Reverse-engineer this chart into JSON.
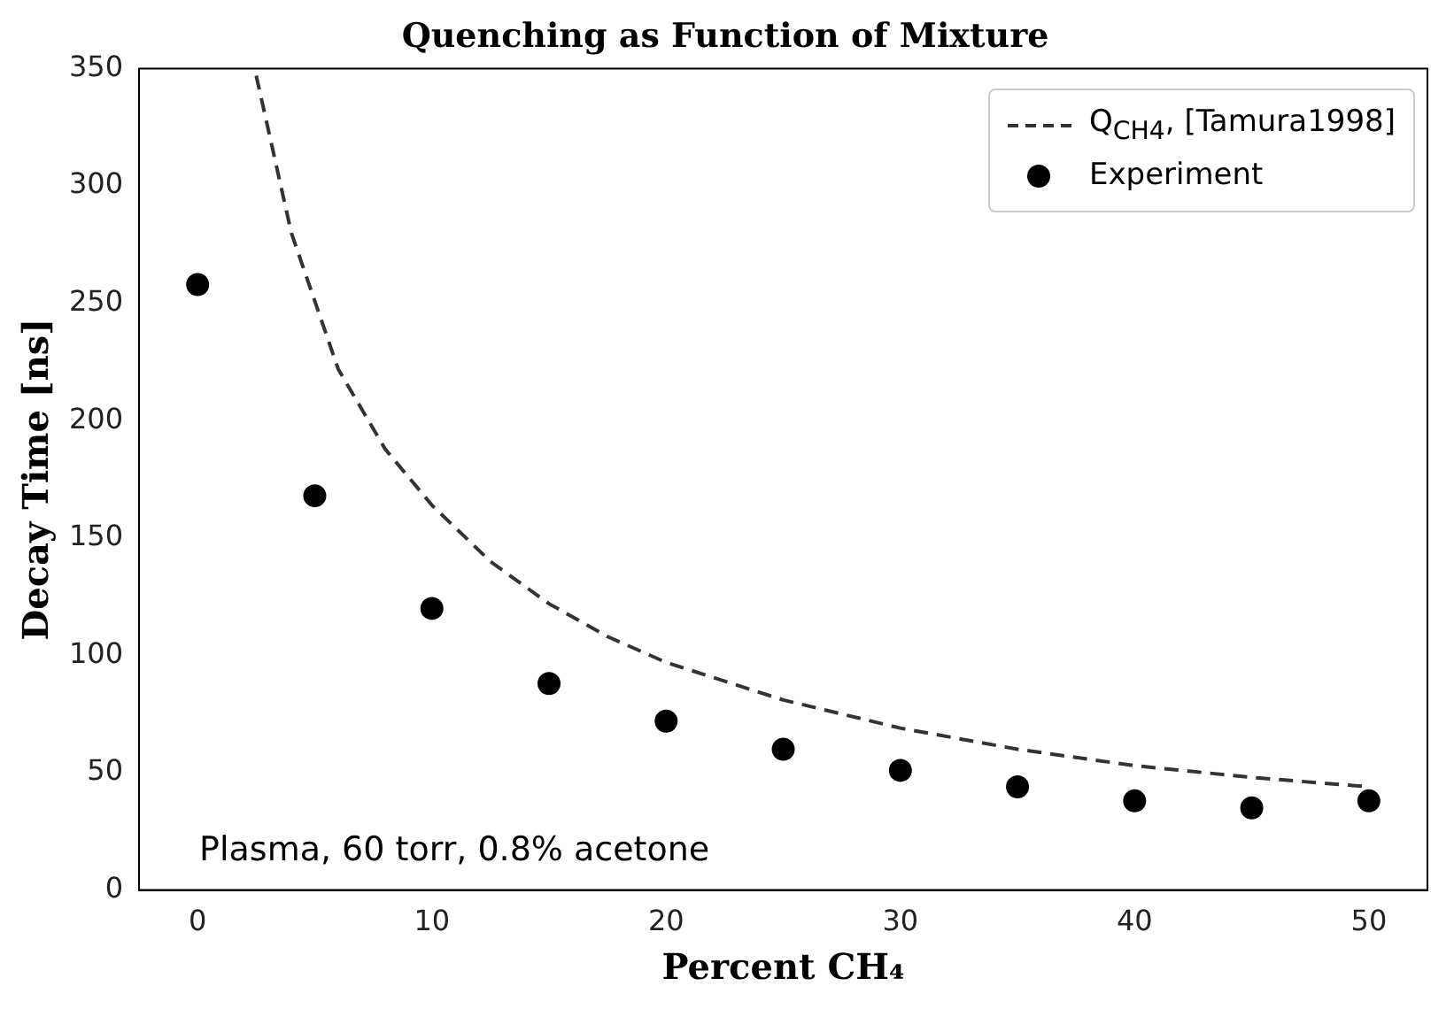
{
  "chart_data": {
    "type": "scatter",
    "title": "Quenching as Function of Mixture",
    "xlabel": "Percent CH₄",
    "ylabel": "Decay Time [ns]",
    "xlim": [
      -2.5,
      52.5
    ],
    "xticks": [
      0,
      10,
      20,
      30,
      40,
      50
    ],
    "ylim": [
      0,
      350
    ],
    "yticks": [
      0,
      50,
      100,
      150,
      200,
      250,
      300,
      350
    ],
    "grid": false,
    "legend": "top right",
    "annotations": [
      "Plasma, 60 torr, 0.8% acetone"
    ],
    "series": [
      {
        "name": "Q$_{CH4}$,  [Tamura1998]",
        "type": "line",
        "line_style": "dashed",
        "marker": "none",
        "color": "#333333",
        "x": [
          2.5,
          4,
          6,
          8,
          10,
          12.5,
          15,
          17.5,
          20,
          25,
          30,
          35,
          40,
          45,
          50
        ],
        "values": [
          347,
          280,
          222,
          188,
          164,
          140,
          122,
          108,
          97,
          81,
          69,
          60,
          53,
          48,
          44
        ]
      },
      {
        "name": "Experiment",
        "type": "scatter",
        "marker": "circle",
        "color": "#000000",
        "x": [
          0,
          5,
          10,
          15,
          20,
          25,
          30,
          35,
          40,
          45,
          50
        ],
        "values": [
          258,
          168,
          120,
          88,
          72,
          60,
          51,
          44,
          38,
          35,
          38
        ]
      }
    ]
  }
}
